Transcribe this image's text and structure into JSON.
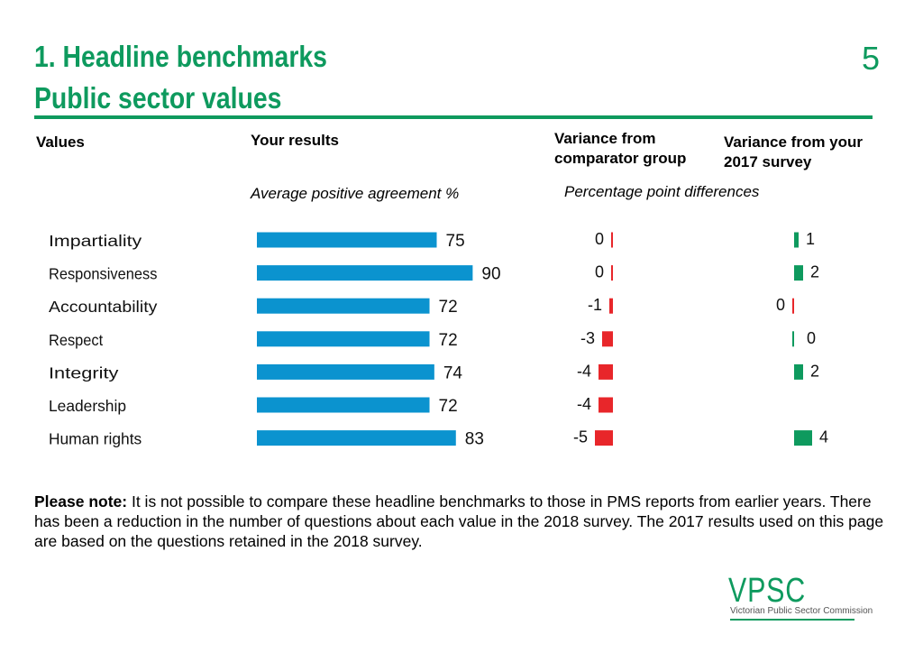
{
  "page": {
    "title": "1. Headline benchmarks",
    "subtitle": "Public sector values",
    "page_number": "5",
    "brand_color": "#0e9a5e"
  },
  "headers": {
    "values": "Values",
    "your_results": "Your results",
    "variance_comparator": "Variance from comparator group",
    "variance_2017": "Variance from your 2017 survey",
    "avg_positive": "Average positive agreement %",
    "pp_differences": "Percentage point differences"
  },
  "note": {
    "label": "Please note:",
    "text": " It is not possible to compare these headline benchmarks to those in PMS reports from earlier years. There has been a reduction in the number of questions about each value in the 2018 survey. The 2017 results used on this page are based on the questions retained in the 2018 survey."
  },
  "logo": {
    "name": "VPSC",
    "full_name": "Victorian Public Sector Commission"
  },
  "chart_data": {
    "type": "bar",
    "categories": [
      "Impartiality",
      "Responsiveness",
      "Accountability",
      "Respect",
      "Integrity",
      "Leadership",
      "Human rights"
    ],
    "series": [
      {
        "values": [
          75,
          90,
          72,
          72,
          74,
          72,
          83
        ],
        "color": "#0b93cf"
      },
      {
        "values": [
          0,
          0,
          -1,
          -3,
          -4,
          -4,
          -5
        ],
        "color": "#e8262a"
      },
      {
        "values": [
          1,
          2,
          0,
          0,
          2,
          null,
          4
        ],
        "color_positive": "#0e9a5e",
        "color_zero_negative": "#e8262a"
      }
    ]
  }
}
